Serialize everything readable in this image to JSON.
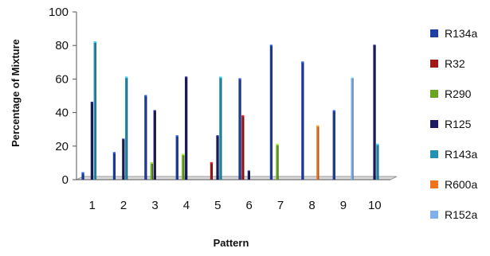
{
  "chart_data": {
    "type": "bar",
    "title": "",
    "xlabel": "Pattern",
    "ylabel": "Percentage of Mixture",
    "ylim": [
      0,
      100
    ],
    "yticks": [
      0,
      20,
      40,
      60,
      80,
      100
    ],
    "grid": false,
    "legend_position": "right",
    "categories": [
      "1",
      "2",
      "3",
      "4",
      "5",
      "6",
      "7",
      "8",
      "9",
      "10"
    ],
    "series": [
      {
        "name": "R134a",
        "color": "#1f3fa3",
        "values": [
          4,
          16,
          50,
          26,
          0,
          60,
          80,
          70,
          41,
          0
        ]
      },
      {
        "name": "R32",
        "color": "#a01818",
        "values": [
          0,
          0,
          0,
          0,
          10,
          38,
          0,
          0,
          0,
          0
        ]
      },
      {
        "name": "R290",
        "color": "#6aa521",
        "values": [
          0,
          0,
          10,
          15,
          0,
          0,
          21,
          0,
          0,
          0
        ]
      },
      {
        "name": "R125",
        "color": "#1b1b5e",
        "values": [
          46,
          24,
          41,
          61,
          26,
          5,
          0,
          0,
          0,
          80
        ]
      },
      {
        "name": "R143a",
        "color": "#2390b4",
        "values": [
          82,
          61,
          0,
          0,
          61,
          0,
          0,
          0,
          0,
          21
        ]
      },
      {
        "name": "R600a",
        "color": "#f07420",
        "values": [
          0,
          0,
          0,
          0,
          0,
          0,
          0,
          32,
          0,
          0
        ]
      },
      {
        "name": "R152a",
        "color": "#7fb0ec",
        "values": [
          0,
          0,
          0,
          0,
          0,
          0,
          0,
          0,
          61,
          0
        ]
      }
    ]
  }
}
